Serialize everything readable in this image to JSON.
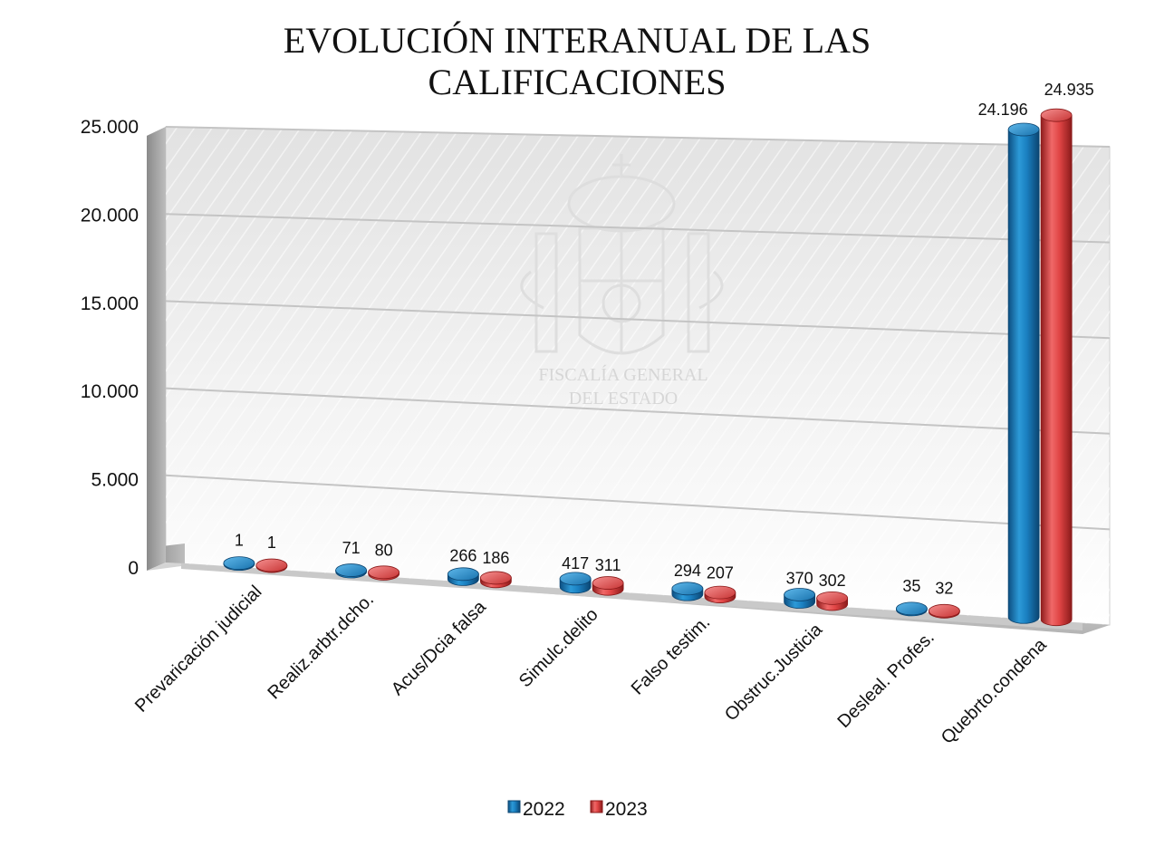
{
  "chart_data": {
    "type": "bar",
    "title_lines": [
      "EVOLUCIÓN INTERANUAL DE LAS",
      "CALIFICACIONES"
    ],
    "categories": [
      "Prevaricación judicial",
      "Realiz.arbtr.dcho.",
      "Acus/Dcia falsa",
      "Simulc.delito",
      "Falso testim.",
      "Obstruc.Justicia",
      "Desleal. Profes.",
      "Quebrto.condena"
    ],
    "series": [
      {
        "name": "2022",
        "values": [
          1,
          71,
          266,
          417,
          294,
          370,
          35,
          24196
        ],
        "labels": [
          "1",
          "71",
          "266",
          "417",
          "294",
          "370",
          "35",
          "24.196"
        ],
        "color": "#1a7fc0"
      },
      {
        "name": "2023",
        "values": [
          1,
          80,
          186,
          311,
          207,
          302,
          32,
          24935
        ],
        "labels": [
          "1",
          "80",
          "186",
          "311",
          "207",
          "302",
          "32",
          "24.935"
        ],
        "color": "#e04545"
      }
    ],
    "yticks": [
      0,
      5000,
      10000,
      15000,
      20000,
      25000
    ],
    "ytick_labels": [
      "0",
      "5.000",
      "10.000",
      "15.000",
      "20.000",
      "25.000"
    ],
    "ylim": [
      0,
      25000
    ],
    "grid": true,
    "legend_position": "bottom",
    "watermark": [
      "FISCALÍA GENERAL",
      "DEL ESTADO"
    ]
  }
}
